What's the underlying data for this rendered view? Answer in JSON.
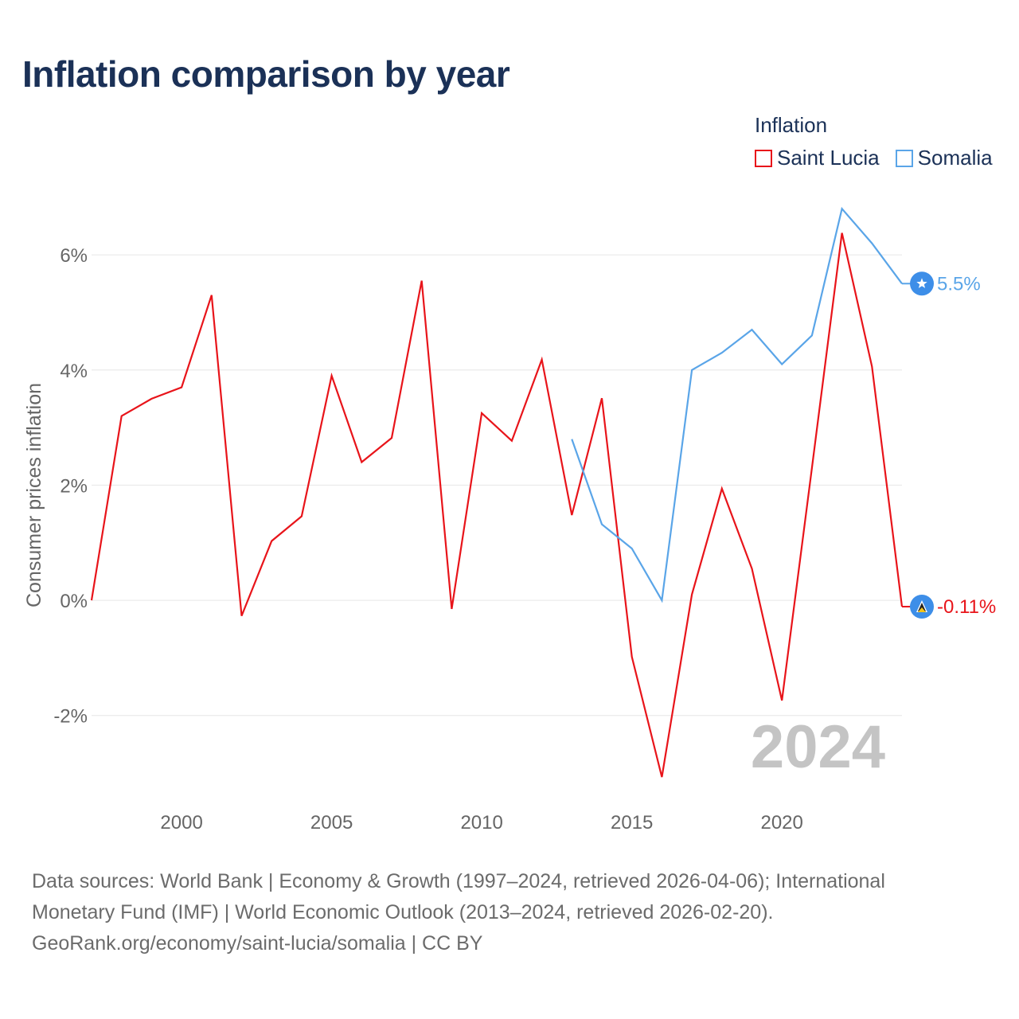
{
  "title": "Inflation comparison by year",
  "legend": {
    "title": "Inflation",
    "items": [
      {
        "name": "Saint Lucia",
        "color": "#e8141a"
      },
      {
        "name": "Somalia",
        "color": "#5aa5e8"
      }
    ]
  },
  "chart_data": {
    "type": "line",
    "title": "Inflation comparison by year",
    "xlabel": "",
    "ylabel": "Consumer prices inflation",
    "xlim": [
      1997,
      2024
    ],
    "ylim": [
      -3.4,
      6.9
    ],
    "x_ticks": [
      2000,
      2005,
      2010,
      2015,
      2020
    ],
    "y_ticks": [
      -2,
      0,
      2,
      4,
      6
    ],
    "y_tick_labels": [
      "-2%",
      "0%",
      "2%",
      "4%",
      "6%"
    ],
    "grid": true,
    "watermark_year": "2024",
    "series": [
      {
        "name": "Saint Lucia",
        "color": "#e8141a",
        "marker_icon": "saint-lucia-flag-icon",
        "end_label": "-0.11%",
        "x": [
          1997,
          1998,
          1999,
          2000,
          2001,
          2002,
          2003,
          2004,
          2005,
          2006,
          2007,
          2008,
          2009,
          2010,
          2011,
          2012,
          2013,
          2014,
          2015,
          2016,
          2017,
          2018,
          2019,
          2020,
          2021,
          2022,
          2023,
          2024
        ],
        "values": [
          0.0,
          3.2,
          3.5,
          3.7,
          5.3,
          -0.27,
          1.03,
          1.46,
          3.9,
          2.4,
          2.82,
          5.55,
          -0.15,
          3.25,
          2.77,
          4.18,
          1.48,
          3.51,
          -0.98,
          -3.07,
          0.1,
          1.94,
          0.55,
          -1.74,
          2.3,
          6.38,
          4.06,
          -0.11
        ]
      },
      {
        "name": "Somalia",
        "color": "#5aa5e8",
        "marker_icon": "somalia-flag-icon",
        "end_label": "5.5%",
        "x": [
          2013,
          2014,
          2015,
          2016,
          2017,
          2018,
          2019,
          2020,
          2021,
          2022,
          2023,
          2024
        ],
        "values": [
          2.8,
          1.32,
          0.9,
          0.0,
          4.0,
          4.3,
          4.7,
          4.1,
          4.6,
          6.8,
          6.2,
          5.5
        ]
      }
    ]
  },
  "footer": {
    "line1": "Data sources: World Bank | Economy & Growth (1997–2024, retrieved 2026-04-06); International",
    "line2": "Monetary Fund (IMF) | World Economic Outlook (2013–2024, retrieved 2026-02-20).",
    "line3": "GeoRank.org/economy/saint-lucia/somalia | CC BY"
  }
}
